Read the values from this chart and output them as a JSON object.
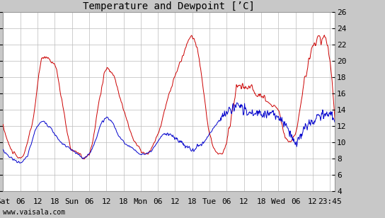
{
  "title": "Temperature and Dewpoint [’C]",
  "ylim": [
    4,
    26
  ],
  "temp_color": "#cc0000",
  "dewpoint_color": "#0000cc",
  "fig_bg_color": "#c8c8c8",
  "plot_bg_color": "#ffffff",
  "grid_color": "#bbbbbb",
  "watermark": "www.vaisala.com",
  "xtick_labels": [
    "Sat",
    "06",
    "12",
    "18",
    "Sun",
    "06",
    "12",
    "18",
    "Mon",
    "06",
    "12",
    "18",
    "Tue",
    "06",
    "12",
    "18",
    "Wed",
    "06",
    "12",
    "23:45"
  ],
  "xtick_positions": [
    0,
    6,
    12,
    18,
    24,
    30,
    36,
    42,
    48,
    54,
    60,
    66,
    72,
    78,
    84,
    90,
    96,
    102,
    108,
    114
  ],
  "total_hours": 115.75,
  "title_fontsize": 10,
  "tick_fontsize": 8,
  "watermark_fontsize": 7
}
